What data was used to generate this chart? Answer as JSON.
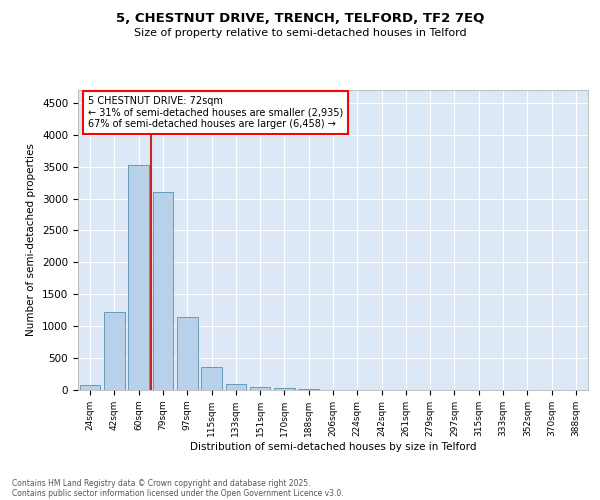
{
  "title1": "5, CHESTNUT DRIVE, TRENCH, TELFORD, TF2 7EQ",
  "title2": "Size of property relative to semi-detached houses in Telford",
  "xlabel": "Distribution of semi-detached houses by size in Telford",
  "ylabel": "Number of semi-detached properties",
  "categories": [
    "24sqm",
    "42sqm",
    "60sqm",
    "79sqm",
    "97sqm",
    "115sqm",
    "133sqm",
    "151sqm",
    "170sqm",
    "188sqm",
    "206sqm",
    "224sqm",
    "242sqm",
    "261sqm",
    "279sqm",
    "297sqm",
    "315sqm",
    "333sqm",
    "352sqm",
    "370sqm",
    "388sqm"
  ],
  "values": [
    75,
    1220,
    3520,
    3100,
    1150,
    360,
    100,
    50,
    25,
    10,
    5,
    2,
    0,
    0,
    0,
    0,
    0,
    0,
    0,
    0,
    0
  ],
  "bar_color": "#b8d0e8",
  "bar_edge_color": "#6699bb",
  "vline_color": "#cc2222",
  "vline_x": 2.5,
  "annotation_title": "5 CHESTNUT DRIVE: 72sqm",
  "annotation_line1": "← 31% of semi-detached houses are smaller (2,935)",
  "annotation_line2": "67% of semi-detached houses are larger (6,458) →",
  "ylim": [
    0,
    4700
  ],
  "yticks": [
    0,
    500,
    1000,
    1500,
    2000,
    2500,
    3000,
    3500,
    4000,
    4500
  ],
  "bg_color": "#dce8f5",
  "footer1": "Contains HM Land Registry data © Crown copyright and database right 2025.",
  "footer2": "Contains public sector information licensed under the Open Government Licence v3.0."
}
